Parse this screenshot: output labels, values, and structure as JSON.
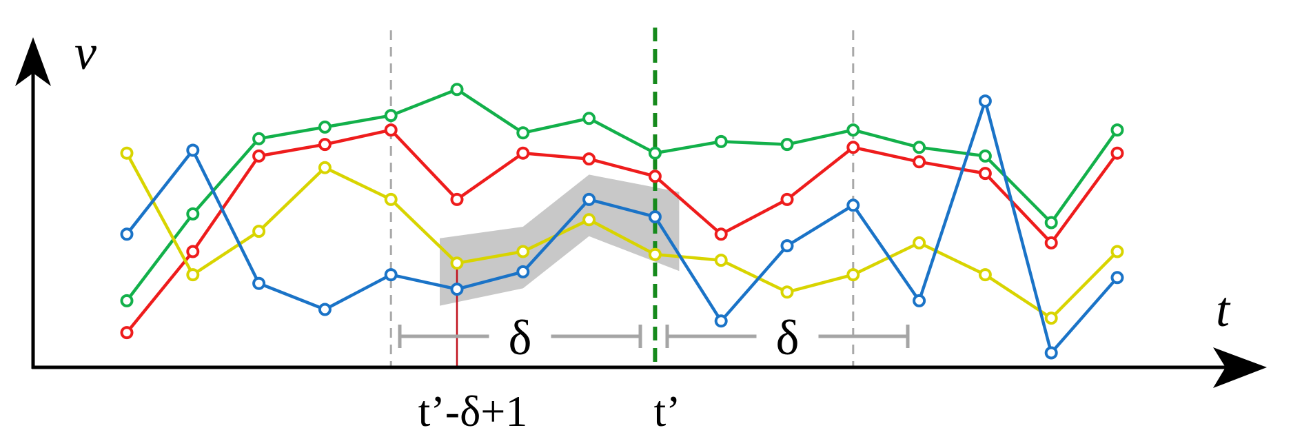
{
  "axes": {
    "y_label": "v",
    "x_label": "t"
  },
  "markers": {
    "start_label": "t’-δ+1",
    "current_label": "t’"
  },
  "brackets": {
    "left_label": "δ",
    "right_label": "δ"
  },
  "colors": {
    "green": "#12b04a",
    "red": "#ee1c1c",
    "yellow": "#d8d400",
    "blue": "#1a73c7",
    "current_line": "#168a1c",
    "start_line": "#c0101c",
    "dashed_guides": "#a8a8a8",
    "bracket": "#a5a5a5",
    "highlight": "#c8c8c8"
  },
  "chart_data": {
    "type": "line",
    "x": [
      1,
      2,
      3,
      4,
      5,
      6,
      7,
      8,
      9,
      10,
      11,
      12,
      13,
      14,
      15,
      16
    ],
    "series": [
      {
        "color": "green",
        "values": [
          2.3,
          5.3,
          7.9,
          8.3,
          8.7,
          9.6,
          8.1,
          8.6,
          7.4,
          7.8,
          7.7,
          8.2,
          7.6,
          7.3,
          5.0,
          8.2
        ]
      },
      {
        "color": "red",
        "values": [
          1.2,
          4.0,
          7.3,
          7.7,
          8.2,
          5.8,
          7.4,
          7.2,
          6.6,
          4.6,
          5.8,
          7.6,
          7.1,
          6.7,
          4.3,
          7.4
        ]
      },
      {
        "color": "yellow",
        "values": [
          7.4,
          3.2,
          4.7,
          6.9,
          5.8,
          3.6,
          4.0,
          5.1,
          3.9,
          3.7,
          2.6,
          3.2,
          4.3,
          3.2,
          1.7,
          4.0
        ]
      },
      {
        "color": "blue",
        "values": [
          4.6,
          7.5,
          2.9,
          2.0,
          3.2,
          2.7,
          3.3,
          5.8,
          5.2,
          1.6,
          4.2,
          5.6,
          2.3,
          9.2,
          0.5,
          3.1
        ]
      }
    ],
    "guides": {
      "dashed": [
        5,
        12
      ],
      "start": 6,
      "current": 9
    },
    "highlight_window": [
      6,
      9
    ]
  }
}
